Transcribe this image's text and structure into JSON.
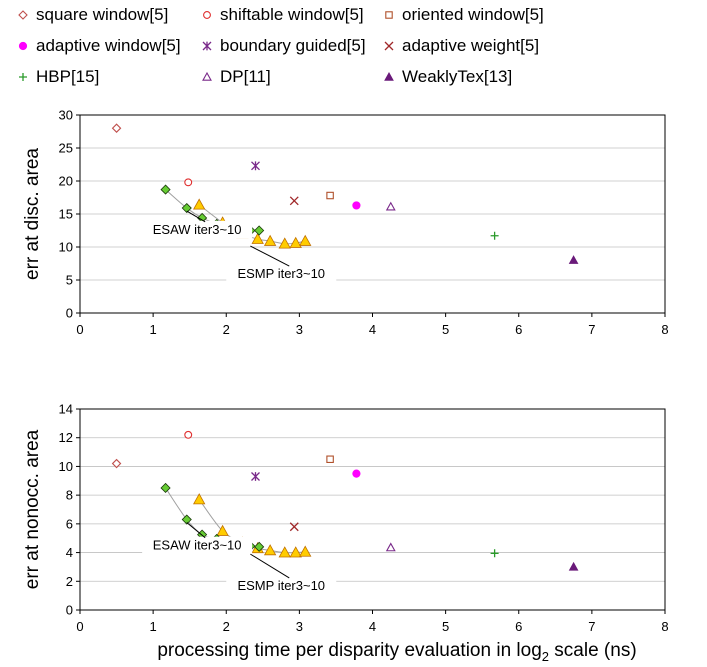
{
  "legend": [
    {
      "label": "square window[5]",
      "marker": "diamond-open",
      "color": "#c0504d"
    },
    {
      "label": "shiftable window[5]",
      "marker": "circle-open",
      "color": "#e03030"
    },
    {
      "label": "oriented window[5]",
      "marker": "square-open",
      "color": "#b0502a"
    },
    {
      "label": "adaptive window[5]",
      "marker": "circle-filled",
      "color": "#ff00ff"
    },
    {
      "label": "boundary guided[5]",
      "marker": "star",
      "color": "#7a2a8a"
    },
    {
      "label": "adaptive weight[5]",
      "marker": "x",
      "color": "#a0282a"
    },
    {
      "label": "HBP[15]",
      "marker": "plus",
      "color": "#2a9a2a"
    },
    {
      "label": "DP[11]",
      "marker": "triangle-open",
      "color": "#7a2a8a"
    },
    {
      "label": "WeaklyTex[13]",
      "marker": "triangle-filled",
      "color": "#6a1a7a"
    }
  ],
  "colors": {
    "esaw_fill": "#66cc33",
    "esmp_fill": "#ffcc00",
    "curve": "#a0a0a0",
    "grid": "#c0c0c0"
  },
  "chart_data": [
    {
      "type": "scatter",
      "ylabel": "err at disc. area",
      "xlim": [
        0,
        8
      ],
      "ylim": [
        0,
        30
      ],
      "xticks": [
        0,
        1,
        2,
        3,
        4,
        5,
        6,
        7,
        8
      ],
      "yticks": [
        0,
        5,
        10,
        15,
        20,
        25,
        30
      ],
      "grid": "horizontal",
      "points": [
        {
          "series": "square window[5]",
          "x": 0.5,
          "y": 28.0
        },
        {
          "series": "shiftable window[5]",
          "x": 1.48,
          "y": 19.8
        },
        {
          "series": "oriented window[5]",
          "x": 3.42,
          "y": 17.8
        },
        {
          "series": "adaptive window[5]",
          "x": 3.78,
          "y": 16.3
        },
        {
          "series": "boundary guided[5]",
          "x": 2.4,
          "y": 22.3
        },
        {
          "series": "adaptive weight[5]",
          "x": 2.93,
          "y": 17.0
        },
        {
          "series": "HBP[15]",
          "x": 5.67,
          "y": 11.7
        },
        {
          "series": "DP[11]",
          "x": 4.25,
          "y": 16.1
        },
        {
          "series": "WeaklyTex[13]",
          "x": 6.75,
          "y": 8.0
        }
      ],
      "esaw": {
        "x": [
          1.17,
          1.46,
          1.67,
          1.87,
          2.03,
          2.2,
          2.33,
          2.45
        ],
        "y": [
          18.7,
          15.9,
          14.4,
          13.5,
          12.9,
          12.7,
          12.5,
          12.5
        ]
      },
      "esmp": {
        "x": [
          1.63,
          1.95,
          2.22,
          2.43,
          2.6,
          2.8,
          2.95,
          3.08
        ],
        "y": [
          16.4,
          13.7,
          12.0,
          11.2,
          10.9,
          10.5,
          10.6,
          10.9
        ]
      },
      "annotations": [
        {
          "text": "ESAW iter3~10",
          "x": 0.85,
          "y": 12.0,
          "tip_x": 1.46,
          "tip_y": 15.9
        },
        {
          "text": "ESMP iter3~10",
          "x": 2.0,
          "y": 5.3,
          "tip_x": 2.33,
          "tip_y": 10.6
        }
      ]
    },
    {
      "type": "scatter",
      "ylabel": "err at nonocc. area",
      "xlabel": "processing time per disparity evaluation in log",
      "xlabel_sub": "2",
      "xlabel_tail": " scale (ns)",
      "xlim": [
        0,
        8
      ],
      "ylim": [
        0,
        14
      ],
      "xticks": [
        0,
        1,
        2,
        3,
        4,
        5,
        6,
        7,
        8
      ],
      "yticks": [
        0,
        2,
        4,
        6,
        8,
        10,
        12,
        14
      ],
      "grid": "horizontal",
      "points": [
        {
          "series": "square window[5]",
          "x": 0.5,
          "y": 10.2
        },
        {
          "series": "shiftable window[5]",
          "x": 1.48,
          "y": 12.2
        },
        {
          "series": "oriented window[5]",
          "x": 3.42,
          "y": 10.5
        },
        {
          "series": "adaptive window[5]",
          "x": 3.78,
          "y": 9.5
        },
        {
          "series": "boundary guided[5]",
          "x": 2.4,
          "y": 9.3
        },
        {
          "series": "adaptive weight[5]",
          "x": 2.93,
          "y": 5.8
        },
        {
          "series": "HBP[15]",
          "x": 5.67,
          "y": 3.95
        },
        {
          "series": "DP[11]",
          "x": 4.25,
          "y": 4.35
        },
        {
          "series": "WeaklyTex[13]",
          "x": 6.75,
          "y": 3.0
        }
      ],
      "esaw": {
        "x": [
          1.17,
          1.46,
          1.67,
          1.87,
          2.03,
          2.2,
          2.33,
          2.45
        ],
        "y": [
          8.5,
          6.3,
          5.25,
          4.95,
          4.75,
          4.6,
          4.45,
          4.4
        ]
      },
      "esmp": {
        "x": [
          1.63,
          1.95,
          2.22,
          2.43,
          2.6,
          2.8,
          2.95,
          3.08
        ],
        "y": [
          7.7,
          5.5,
          4.7,
          4.3,
          4.15,
          4.0,
          4.0,
          4.05
        ]
      },
      "annotations": [
        {
          "text": "ESAW iter3~10",
          "x": 0.85,
          "y": 4.2,
          "tip_x": 1.46,
          "tip_y": 6.3
        },
        {
          "text": "ESMP iter3~10",
          "x": 2.0,
          "y": 1.4,
          "tip_x": 2.33,
          "tip_y": 4.1
        }
      ]
    }
  ]
}
